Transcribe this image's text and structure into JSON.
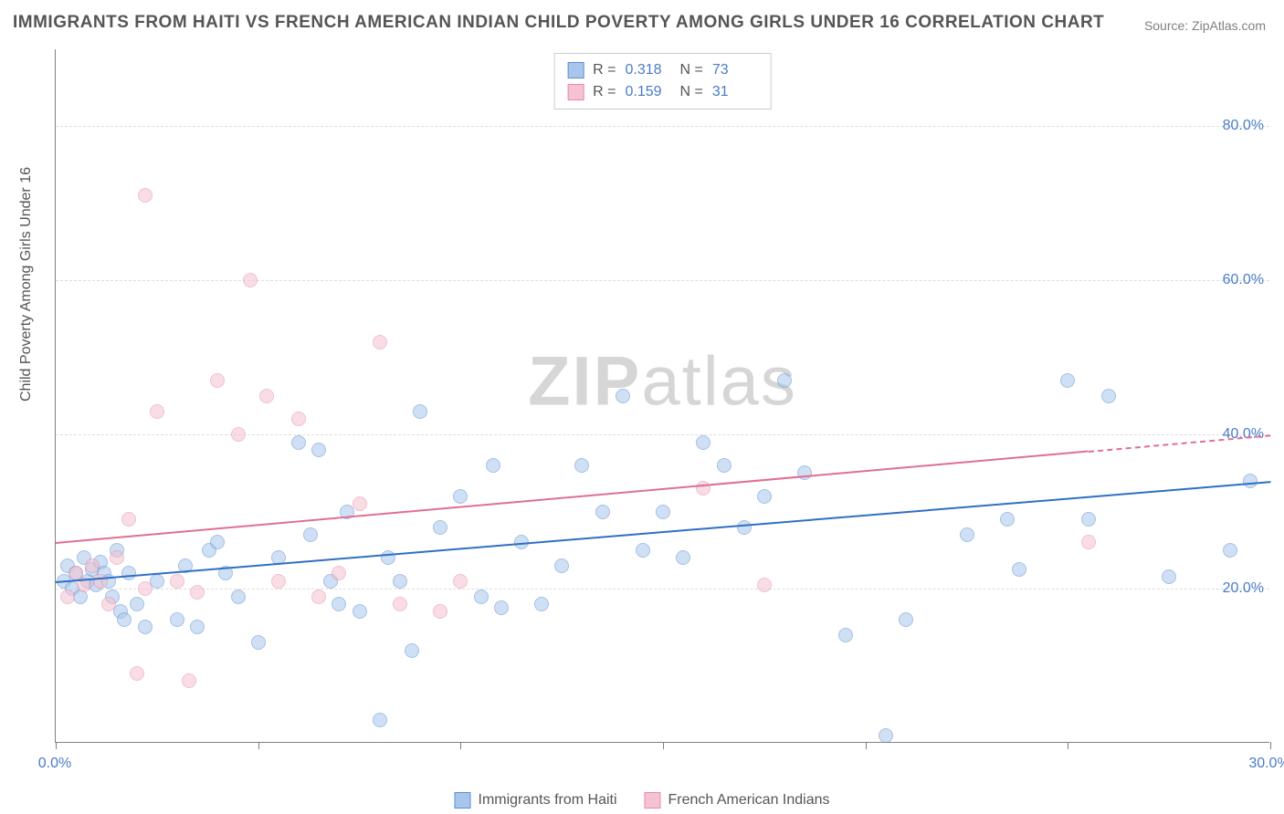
{
  "title": "IMMIGRANTS FROM HAITI VS FRENCH AMERICAN INDIAN CHILD POVERTY AMONG GIRLS UNDER 16 CORRELATION CHART",
  "source": "Source: ZipAtlas.com",
  "watermark_bold": "ZIP",
  "watermark_light": "atlas",
  "ylabel": "Child Poverty Among Girls Under 16",
  "chart": {
    "type": "scatter",
    "xlim": [
      0,
      30
    ],
    "ylim": [
      0,
      90
    ],
    "yticks": [
      20,
      40,
      60,
      80
    ],
    "ytick_labels": [
      "20.0%",
      "40.0%",
      "60.0%",
      "80.0%"
    ],
    "xticks": [
      0,
      5,
      10,
      15,
      20,
      25,
      30
    ],
    "xtick_labels_shown": {
      "0": "0.0%",
      "30": "30.0%"
    },
    "grid_color": "#dddddd",
    "axis_color": "#808080",
    "background_color": "#ffffff",
    "marker_radius": 8,
    "marker_opacity": 0.55,
    "line_width": 2
  },
  "series": [
    {
      "id": "haiti",
      "label": "Immigrants from Haiti",
      "fill": "#a8c6ec",
      "stroke": "#5b8fd6",
      "line_color": "#2f6fc5",
      "r": "0.318",
      "n": "73",
      "regression": {
        "x0": 0,
        "y0": 21,
        "x1": 30,
        "y1": 34,
        "x_solid_end": 30
      },
      "points": [
        [
          0.2,
          21
        ],
        [
          0.3,
          23
        ],
        [
          0.4,
          20
        ],
        [
          0.5,
          22
        ],
        [
          0.6,
          19
        ],
        [
          0.7,
          24
        ],
        [
          0.8,
          21
        ],
        [
          0.9,
          22.5
        ],
        [
          1.0,
          20.5
        ],
        [
          1.1,
          23.5
        ],
        [
          1.2,
          22
        ],
        [
          1.3,
          21
        ],
        [
          1.4,
          19
        ],
        [
          1.5,
          25
        ],
        [
          1.6,
          17
        ],
        [
          1.7,
          16
        ],
        [
          1.8,
          22
        ],
        [
          2.0,
          18
        ],
        [
          2.2,
          15
        ],
        [
          2.5,
          21
        ],
        [
          3.0,
          16
        ],
        [
          3.2,
          23
        ],
        [
          3.5,
          15
        ],
        [
          3.8,
          25
        ],
        [
          4.2,
          22
        ],
        [
          4.5,
          19
        ],
        [
          5.0,
          13
        ],
        [
          5.5,
          24
        ],
        [
          6.0,
          39
        ],
        [
          6.3,
          27
        ],
        [
          6.5,
          38
        ],
        [
          7.0,
          18
        ],
        [
          7.2,
          30
        ],
        [
          7.5,
          17
        ],
        [
          8.0,
          3
        ],
        [
          8.2,
          24
        ],
        [
          8.5,
          21
        ],
        [
          8.8,
          12
        ],
        [
          9.0,
          43
        ],
        [
          9.5,
          28
        ],
        [
          10.0,
          32
        ],
        [
          10.5,
          19
        ],
        [
          10.8,
          36
        ],
        [
          11.0,
          17.5
        ],
        [
          11.5,
          26
        ],
        [
          12.0,
          18
        ],
        [
          12.5,
          23
        ],
        [
          13.0,
          36
        ],
        [
          13.5,
          30
        ],
        [
          14.0,
          45
        ],
        [
          14.5,
          25
        ],
        [
          15.0,
          30
        ],
        [
          15.5,
          24
        ],
        [
          16.0,
          39
        ],
        [
          16.5,
          36
        ],
        [
          17.0,
          28
        ],
        [
          17.5,
          32
        ],
        [
          18.0,
          47
        ],
        [
          18.5,
          35
        ],
        [
          19.5,
          14
        ],
        [
          20.5,
          1
        ],
        [
          21.0,
          16
        ],
        [
          22.5,
          27
        ],
        [
          23.5,
          29
        ],
        [
          23.8,
          22.5
        ],
        [
          25.0,
          47
        ],
        [
          25.5,
          29
        ],
        [
          26.0,
          45
        ],
        [
          27.5,
          21.5
        ],
        [
          29.0,
          25
        ],
        [
          29.5,
          34
        ],
        [
          4.0,
          26
        ],
        [
          6.8,
          21
        ]
      ]
    },
    {
      "id": "french",
      "label": "French American Indians",
      "fill": "#f5c2d1",
      "stroke": "#e88ba8",
      "line_color": "#e06f93",
      "r": "0.159",
      "n": "31",
      "regression": {
        "x0": 0,
        "y0": 26,
        "x1": 30,
        "y1": 40,
        "x_solid_end": 25.5
      },
      "points": [
        [
          0.3,
          19
        ],
        [
          0.5,
          22
        ],
        [
          0.7,
          20.5
        ],
        [
          0.9,
          23
        ],
        [
          1.1,
          21
        ],
        [
          1.3,
          18
        ],
        [
          1.5,
          24
        ],
        [
          1.8,
          29
        ],
        [
          2.0,
          9
        ],
        [
          2.2,
          20
        ],
        [
          2.5,
          43
        ],
        [
          2.2,
          71
        ],
        [
          3.0,
          21
        ],
        [
          3.3,
          8
        ],
        [
          3.5,
          19.5
        ],
        [
          4.0,
          47
        ],
        [
          4.5,
          40
        ],
        [
          4.8,
          60
        ],
        [
          5.2,
          45
        ],
        [
          5.5,
          21
        ],
        [
          6.0,
          42
        ],
        [
          6.5,
          19
        ],
        [
          7.0,
          22
        ],
        [
          7.5,
          31
        ],
        [
          8.0,
          52
        ],
        [
          8.5,
          18
        ],
        [
          9.5,
          17
        ],
        [
          10.0,
          21
        ],
        [
          16.0,
          33
        ],
        [
          17.5,
          20.5
        ],
        [
          25.5,
          26
        ]
      ]
    }
  ],
  "legend_top": {
    "r_label": "R =",
    "n_label": "N ="
  }
}
